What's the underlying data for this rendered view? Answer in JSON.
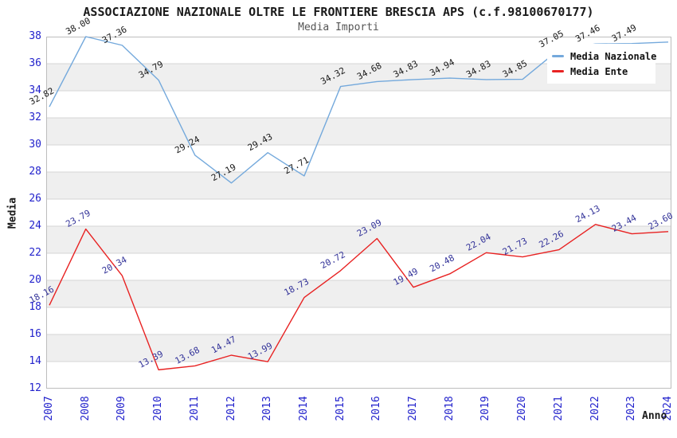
{
  "chart_data": {
    "type": "line",
    "title": "ASSOCIAZIONE NAZIONALE OLTRE LE FRONTIERE BRESCIA APS (c.f.98100670177)",
    "subtitle": "Media Importi",
    "xlabel": "Anno",
    "ylabel": "Media",
    "ylim": [
      12,
      38
    ],
    "ytick_step": 2,
    "grid": true,
    "band_fill": "#efefef",
    "gridline_color": "#d6d6d6",
    "border_color": "#bdbdbd",
    "tick_color": "#2222cc",
    "legend_position": "top-right",
    "x": [
      2007,
      2008,
      2009,
      2010,
      2011,
      2012,
      2013,
      2014,
      2015,
      2016,
      2017,
      2018,
      2019,
      2020,
      2021,
      2022,
      2023,
      2024
    ],
    "series": [
      {
        "name": "Media Nazionale",
        "color": "#74a9dc",
        "label_color": "#1a1a1a",
        "values": [
          32.82,
          38.0,
          37.36,
          34.79,
          29.24,
          27.19,
          29.43,
          27.71,
          34.32,
          34.68,
          34.83,
          34.94,
          34.83,
          34.85,
          37.05,
          37.46,
          37.49,
          37.6
        ],
        "point_labels": [
          "32.82",
          "38.00",
          "37.36",
          "34.79",
          "29.24",
          "27.19",
          "29.43",
          "27.71",
          "34.32",
          "34.68",
          "34.83",
          "34.94",
          "34.83",
          "34.85",
          "37.05",
          "37.46",
          "37.49",
          null
        ]
      },
      {
        "name": "Media Ente",
        "color": "#e82222",
        "label_color": "#333399",
        "values": [
          18.16,
          23.79,
          20.34,
          13.39,
          13.68,
          14.47,
          13.99,
          18.73,
          20.72,
          23.09,
          19.49,
          20.48,
          22.04,
          21.73,
          22.26,
          24.13,
          23.44,
          23.6
        ],
        "point_labels": [
          "18.16",
          "23.79",
          "20.34",
          "13.39",
          "13.68",
          "14.47",
          "13.99",
          "18.73",
          "20.72",
          "23.09",
          "19.49",
          "20.48",
          "22.04",
          "21.73",
          "22.26",
          "24.13",
          "23.44",
          "23.60"
        ]
      }
    ]
  }
}
